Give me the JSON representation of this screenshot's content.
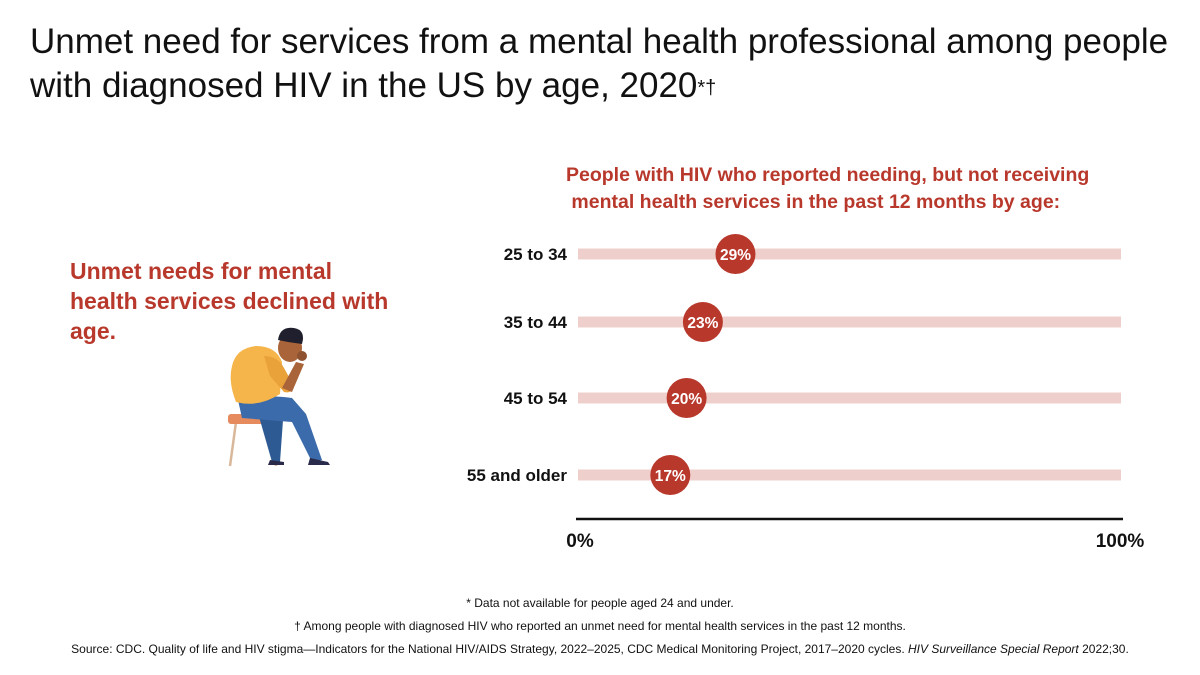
{
  "title": {
    "text": "Unmet need for services from a mental health professional among people with diagnosed HIV in the US by age, 2020",
    "marks": "*†"
  },
  "callout": "Unmet needs for mental health services declined with age.",
  "illustration": {
    "icon": "seated-person-head-in-hand-icon"
  },
  "chart_data": {
    "type": "dot",
    "title": "People with HIV who reported needing, but not receiving\n mental health services in the past 12 months by age:",
    "categories": [
      "25 to 34",
      "35 to 44",
      "45 to 54",
      "55 and older"
    ],
    "values": [
      29,
      23,
      20,
      17
    ],
    "value_labels": [
      "29%",
      "23%",
      "20%",
      "17%"
    ],
    "xlim": [
      0,
      100
    ],
    "x_tick_labels": [
      "0%",
      "100%"
    ],
    "colors": {
      "dot": "#b8382c",
      "track": "#efcfcb",
      "axis": "#111111"
    },
    "grid": false,
    "legend": "none"
  },
  "footnotes": {
    "note1": "* Data not available for people aged 24 and under.",
    "note2": "† Among people with diagnosed HIV who reported an unmet need for mental health services in the past 12 months.",
    "source_prefix": "Source: CDC. Quality of life and HIV stigma—Indicators for the National HIV/AIDS Strategy, 2022–2025, CDC Medical Monitoring Project, 2017–2020 cycles. ",
    "source_journal": "HIV Surveillance Special Report",
    "source_suffix": " 2022;30."
  }
}
